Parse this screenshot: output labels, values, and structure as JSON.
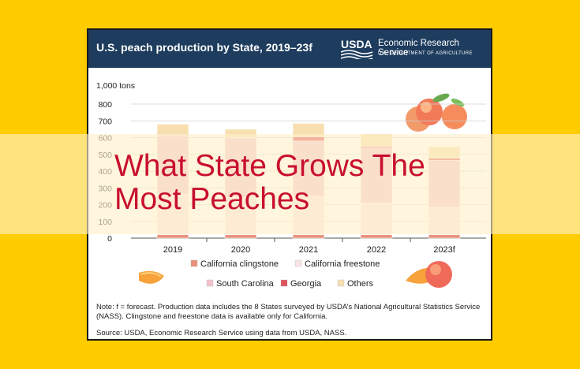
{
  "header": {
    "title": "U.S. peach production by State, 2019–23f",
    "logo_text": "USDA",
    "agency": "Economic Research Service",
    "department": "U.S. DEPARTMENT OF AGRICULTURE"
  },
  "headline": {
    "line1": "What State Grows The",
    "line2": "Most Peaches"
  },
  "notes": {
    "note": "Note: f = forecast. Production data includes the 8 States surveyed by USDA’s National Agricultural Statistics Service (NASS). Clingstone and freestone data is available only for California.",
    "source": "Source: USDA, Economic Research Service using data from USDA, NASS."
  },
  "chart_data": {
    "type": "bar",
    "stacked": true,
    "ylabel": "1,000 tons",
    "ylim": [
      0,
      800
    ],
    "yticks": [
      0,
      100,
      200,
      300,
      400,
      500,
      600,
      700,
      800
    ],
    "categories": [
      "2019",
      "2020",
      "2021",
      "2022",
      "2023f"
    ],
    "series": [
      {
        "name": "California clingstone",
        "color": "#e8907a",
        "values": [
          20,
          20,
          20,
          20,
          20
        ]
      },
      {
        "name": "California freestone",
        "color": "#fbe3e5",
        "values": [
          245,
          225,
          230,
          190,
          165
        ]
      },
      {
        "name": "South Carolina",
        "color": "#f2c3cd",
        "values": [
          345,
          350,
          330,
          330,
          280
        ]
      },
      {
        "name": "Georgia",
        "color": "#e0525a",
        "values": [
          5,
          5,
          25,
          8,
          12
        ]
      },
      {
        "name": "Others",
        "color": "#f8dfb0",
        "values": [
          65,
          50,
          80,
          75,
          68
        ]
      }
    ],
    "legend_position": "bottom",
    "grid": true
  }
}
